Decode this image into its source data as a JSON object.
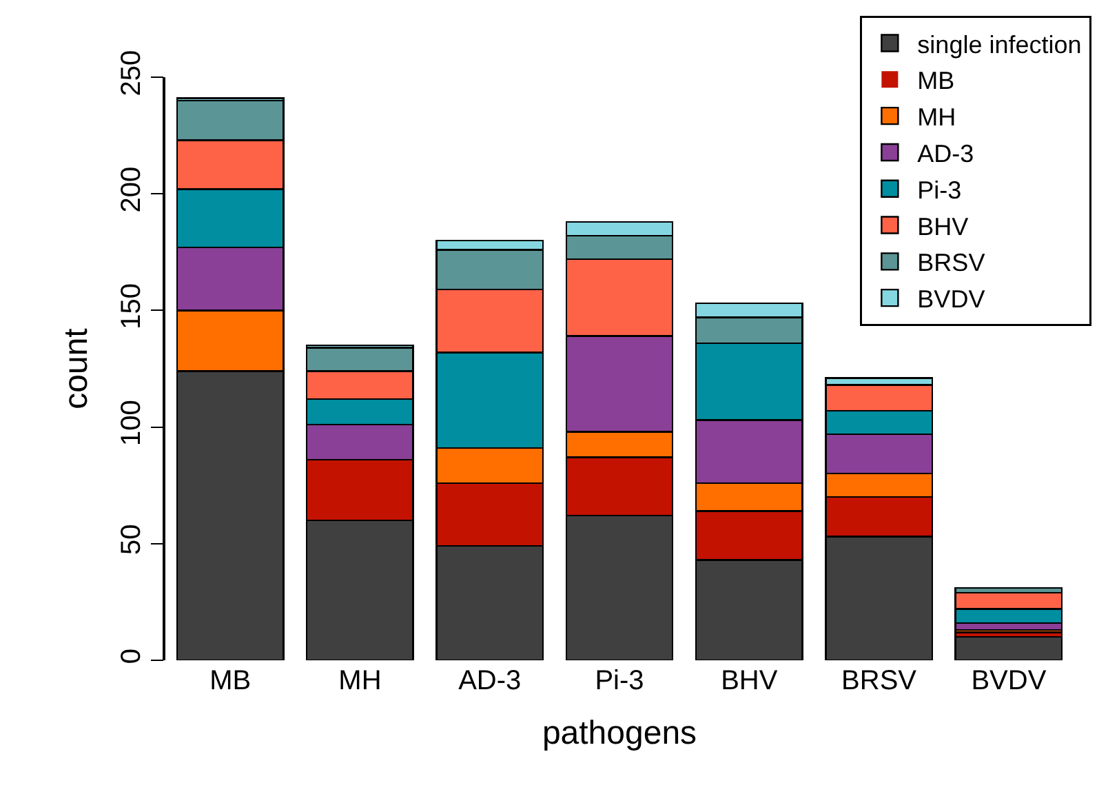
{
  "chart_data": {
    "type": "bar",
    "stacked": true,
    "xlabel": "pathogens",
    "ylabel": "count",
    "categories": [
      "MB",
      "MH",
      "AD-3",
      "Pi-3",
      "BHV",
      "BRSV",
      "BVDV"
    ],
    "series": [
      {
        "name": "single infection",
        "color": "#404040",
        "values": [
          124,
          60,
          49,
          62,
          43,
          53,
          10
        ]
      },
      {
        "name": "MB",
        "color": "#c41200",
        "values": [
          0,
          26,
          27,
          25,
          21,
          17,
          2
        ]
      },
      {
        "name": "MH",
        "color": "#ff6f00",
        "values": [
          26,
          0,
          15,
          11,
          12,
          10,
          1
        ]
      },
      {
        "name": "AD-3",
        "color": "#8a4097",
        "values": [
          27,
          15,
          0,
          41,
          27,
          17,
          3
        ]
      },
      {
        "name": "Pi-3",
        "color": "#008ea0",
        "values": [
          25,
          11,
          41,
          0,
          33,
          10,
          6
        ]
      },
      {
        "name": "BHV",
        "color": "#ff6347",
        "values": [
          21,
          12,
          27,
          33,
          0,
          11,
          7
        ]
      },
      {
        "name": "BRSV",
        "color": "#5b9595",
        "values": [
          17,
          10,
          17,
          10,
          11,
          0,
          2
        ]
      },
      {
        "name": "BVDV",
        "color": "#84d7e1",
        "values": [
          1,
          1,
          4,
          6,
          6,
          3,
          0
        ]
      }
    ],
    "ylim": [
      0,
      250
    ],
    "yticks": [
      0,
      50,
      100,
      150,
      200,
      250
    ],
    "grid": false,
    "legend": "top right"
  }
}
